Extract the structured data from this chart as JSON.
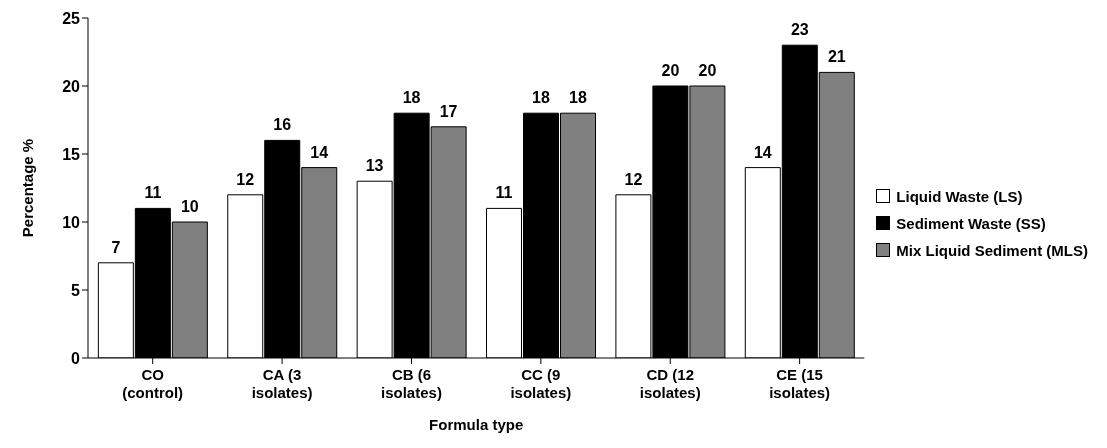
{
  "chart_data": {
    "type": "bar",
    "xlabel": "Formula type",
    "ylabel": "Percentage %",
    "categories": [
      "CO (control)",
      "CA (3 isolates)",
      "CB (6 isolates)",
      "CC (9 isolates)",
      "CD (12 isolates)",
      "CE (15 isolates)"
    ],
    "series": [
      {
        "name": "Liquid Waste (LS)",
        "color": "#ffffff",
        "values": [
          7,
          12,
          13,
          11,
          12,
          14
        ]
      },
      {
        "name": "Sediment Waste (SS)",
        "color": "#000000",
        "values": [
          11,
          16,
          18,
          18,
          20,
          23
        ]
      },
      {
        "name": "Mix Liquid Sediment (MLS)",
        "color": "#808080",
        "values": [
          10,
          14,
          17,
          18,
          20,
          21
        ]
      }
    ],
    "ylim": [
      0,
      25
    ],
    "yticks": [
      0,
      5,
      10,
      15,
      20,
      25
    ],
    "data_labels": true,
    "legend": "right",
    "grid": false
  }
}
